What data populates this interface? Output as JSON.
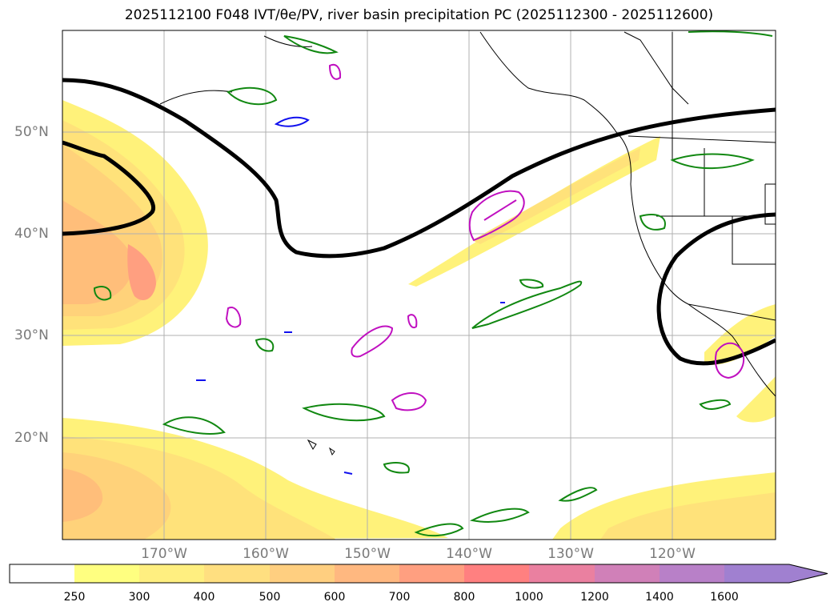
{
  "title": "2025112100 F048 IVT/θe/PV, river basin precipitation PC (2025112300 - 2025112600)",
  "map": {
    "lat_labels": [
      "50°N",
      "40°N",
      "30°N",
      "20°N"
    ],
    "lon_labels": [
      "170°W",
      "160°W",
      "150°W",
      "140°W",
      "130°W",
      "120°W"
    ]
  },
  "colorbar": {
    "ticks": [
      "250",
      "300",
      "400",
      "500",
      "600",
      "700",
      "800",
      "1000",
      "1200",
      "1400",
      "1600"
    ],
    "colors": [
      "#ffffff",
      "#ffff80",
      "#ffef80",
      "#ffdf80",
      "#ffcf80",
      "#ffb880",
      "#ff9f80",
      "#ff8080",
      "#ea80a0",
      "#d080b8",
      "#b880c8",
      "#a080d0"
    ]
  }
}
